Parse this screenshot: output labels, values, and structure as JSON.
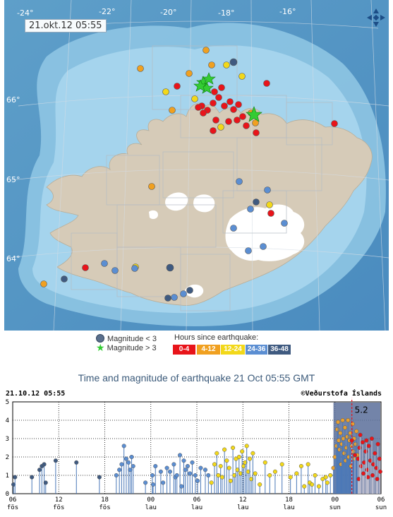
{
  "map": {
    "timestamp": "21.okt.12  05:55",
    "longitude_labels": [
      "-24°",
      "-22°",
      "-20°",
      "-18°",
      "-16°"
    ],
    "latitude_labels": [
      "66°",
      "65°",
      "64°"
    ],
    "compass_icon": "compass-arrows-icon"
  },
  "legend": {
    "magnitude_lt": "Magnitude < 3",
    "magnitude_gt": "Magnitude > 3",
    "hours_title": "Hours since earthquake:",
    "hours_bins": [
      {
        "label": "0-4",
        "color": "#e8141a"
      },
      {
        "label": "4-12",
        "color": "#f0a020"
      },
      {
        "label": "12-24",
        "color": "#f2d81a"
      },
      {
        "label": "24-36",
        "color": "#5b8ed2"
      },
      {
        "label": "36-48",
        "color": "#3f5a80"
      }
    ]
  },
  "chart": {
    "title": "Time and magnitude of earthquake   21 Oct 05:55 GMT",
    "datetime": "21.10.12 05:55",
    "copyright": "©Veðurstofa Íslands",
    "max_label": "5.2"
  },
  "chart_data": {
    "type": "scatter",
    "xlabel": "",
    "ylabel": "",
    "ylim": [
      0,
      5
    ],
    "xlim": [
      0,
      48
    ],
    "yticks": [
      0,
      1,
      2,
      3,
      4,
      5
    ],
    "xticks": [
      {
        "h": 0,
        "top": "06",
        "bottom": "fös"
      },
      {
        "h": 6,
        "top": "12",
        "bottom": "fös"
      },
      {
        "h": 12,
        "top": "18",
        "bottom": "fös"
      },
      {
        "h": 18,
        "top": "00",
        "bottom": "lau"
      },
      {
        "h": 24,
        "top": "06",
        "bottom": "lau"
      },
      {
        "h": 30,
        "top": "12",
        "bottom": "lau"
      },
      {
        "h": 36,
        "top": "18",
        "bottom": "lau"
      },
      {
        "h": 42,
        "top": "00",
        "bottom": "sun"
      },
      {
        "h": 48,
        "top": "06",
        "bottom": "sun"
      }
    ],
    "series": [
      {
        "color": "#3f5a80",
        "points": [
          [
            0.1,
            0.5
          ],
          [
            0.3,
            0.9
          ],
          [
            2.5,
            0.9
          ],
          [
            3.5,
            1.3
          ],
          [
            3.8,
            1.5
          ],
          [
            4.1,
            1.6
          ],
          [
            4.3,
            0.6
          ],
          [
            5.6,
            1.8
          ],
          [
            8.3,
            1.7
          ],
          [
            11.3,
            0.9
          ]
        ]
      },
      {
        "color": "#5b8ed2",
        "points": [
          [
            13.5,
            1.0
          ],
          [
            13.9,
            1.3
          ],
          [
            14.2,
            1.6
          ],
          [
            14.5,
            2.6
          ],
          [
            14.8,
            1.9
          ],
          [
            15.1,
            1.7
          ],
          [
            15.3,
            1.3
          ],
          [
            15.5,
            2.0
          ],
          [
            15.7,
            1.5
          ],
          [
            17.3,
            0.6
          ],
          [
            18.2,
            1.0
          ],
          [
            18.3,
            0.5
          ],
          [
            18.6,
            1.5
          ],
          [
            19.3,
            1.2
          ],
          [
            19.6,
            0.6
          ],
          [
            20.1,
            1.4
          ],
          [
            20.5,
            1.2
          ],
          [
            21.0,
            1.6
          ],
          [
            21.2,
            0.9
          ],
          [
            21.4,
            1.0
          ],
          [
            21.8,
            2.1
          ],
          [
            22.0,
            0.4
          ],
          [
            22.3,
            1.8
          ],
          [
            22.5,
            1.3
          ],
          [
            22.8,
            1.5
          ],
          [
            23.1,
            1.1
          ],
          [
            23.4,
            1.7
          ],
          [
            23.8,
            1.0
          ],
          [
            24.1,
            0.7
          ],
          [
            24.5,
            1.4
          ],
          [
            25.1,
            1.3
          ],
          [
            25.5,
            1.0
          ]
        ]
      },
      {
        "color": "#f2d81a",
        "points": [
          [
            25.9,
            0.6
          ],
          [
            26.3,
            1.6
          ],
          [
            26.6,
            2.2
          ],
          [
            26.8,
            1.0
          ],
          [
            27.1,
            1.5
          ],
          [
            27.3,
            0.9
          ],
          [
            27.6,
            2.4
          ],
          [
            27.9,
            1.8
          ],
          [
            28.2,
            1.4
          ],
          [
            28.4,
            0.7
          ],
          [
            28.7,
            2.5
          ],
          [
            28.9,
            1.0
          ],
          [
            29.1,
            1.9
          ],
          [
            29.3,
            1.3
          ],
          [
            29.5,
            2.0
          ],
          [
            29.7,
            1.1
          ],
          [
            29.9,
            2.3
          ],
          [
            30.1,
            1.5
          ],
          [
            30.3,
            1.7
          ],
          [
            30.5,
            2.6
          ],
          [
            30.7,
            1.2
          ],
          [
            30.9,
            1.9
          ],
          [
            31.1,
            0.8
          ],
          [
            31.3,
            2.2
          ],
          [
            31.6,
            1.1
          ],
          [
            32.2,
            0.5
          ],
          [
            32.9,
            1.7
          ],
          [
            33.5,
            1.0
          ],
          [
            34.2,
            1.2
          ],
          [
            35.1,
            1.6
          ],
          [
            36.2,
            0.9
          ],
          [
            37.0,
            1.1
          ],
          [
            37.6,
            1.5
          ],
          [
            38.0,
            0.4
          ],
          [
            38.5,
            1.6
          ],
          [
            38.7,
            0.6
          ],
          [
            39.0,
            0.5
          ],
          [
            39.4,
            1.0
          ],
          [
            39.9,
            0.4
          ],
          [
            40.4,
            0.8
          ],
          [
            40.8,
            0.9
          ],
          [
            41.0,
            0.6
          ],
          [
            41.4,
            1.0
          ]
        ]
      },
      {
        "color": "#e8a030",
        "points": [
          [
            41.8,
            1.4
          ],
          [
            42.0,
            2.0
          ],
          [
            42.2,
            2.6
          ],
          [
            42.3,
            3.5
          ],
          [
            42.4,
            3.9
          ],
          [
            42.5,
            2.9
          ],
          [
            42.6,
            2.4
          ],
          [
            42.7,
            3.3
          ],
          [
            42.8,
            1.6
          ],
          [
            42.9,
            2.7
          ],
          [
            43.0,
            4.0
          ],
          [
            43.1,
            3.0
          ],
          [
            43.2,
            2.2
          ],
          [
            43.3,
            3.6
          ],
          [
            43.4,
            1.8
          ],
          [
            43.5,
            2.5
          ],
          [
            43.6,
            3.1
          ],
          [
            43.7,
            4.0
          ],
          [
            43.8,
            2.0
          ],
          [
            43.9,
            2.9
          ],
          [
            44.0,
            3.3
          ],
          [
            44.1,
            1.5
          ],
          [
            44.2,
            2.6
          ],
          [
            44.3,
            3.8
          ],
          [
            44.4,
            2.3
          ],
          [
            44.5,
            3.0
          ],
          [
            44.6,
            1.9
          ],
          [
            44.7,
            2.7
          ],
          [
            44.8,
            3.4
          ],
          [
            44.9,
            2.1
          ]
        ]
      },
      {
        "color": "#e8141a",
        "points": [
          [
            44.2,
            2.9
          ],
          [
            44.6,
            2.1
          ],
          [
            45.0,
            1.9
          ],
          [
            45.2,
            2.5
          ],
          [
            45.4,
            1.5
          ],
          [
            45.6,
            2.8
          ],
          [
            45.8,
            1.7
          ],
          [
            46.0,
            2.3
          ],
          [
            46.2,
            1.3
          ],
          [
            46.4,
            2.6
          ],
          [
            46.6,
            1.8
          ],
          [
            46.8,
            3.0
          ],
          [
            47.0,
            1.6
          ],
          [
            47.2,
            2.2
          ],
          [
            47.4,
            1.4
          ],
          [
            47.6,
            2.7
          ],
          [
            47.8,
            1.9
          ],
          [
            47.9,
            1.2
          ],
          [
            46.9,
            1.0
          ],
          [
            46.3,
            0.9
          ],
          [
            45.7,
            1.1
          ],
          [
            45.1,
            0.8
          ],
          [
            47.5,
            0.8
          ],
          [
            46.1,
            2.9
          ],
          [
            45.3,
            3.2
          ]
        ]
      }
    ],
    "marker": {
      "h": 44.2,
      "mag": 5.2
    }
  }
}
